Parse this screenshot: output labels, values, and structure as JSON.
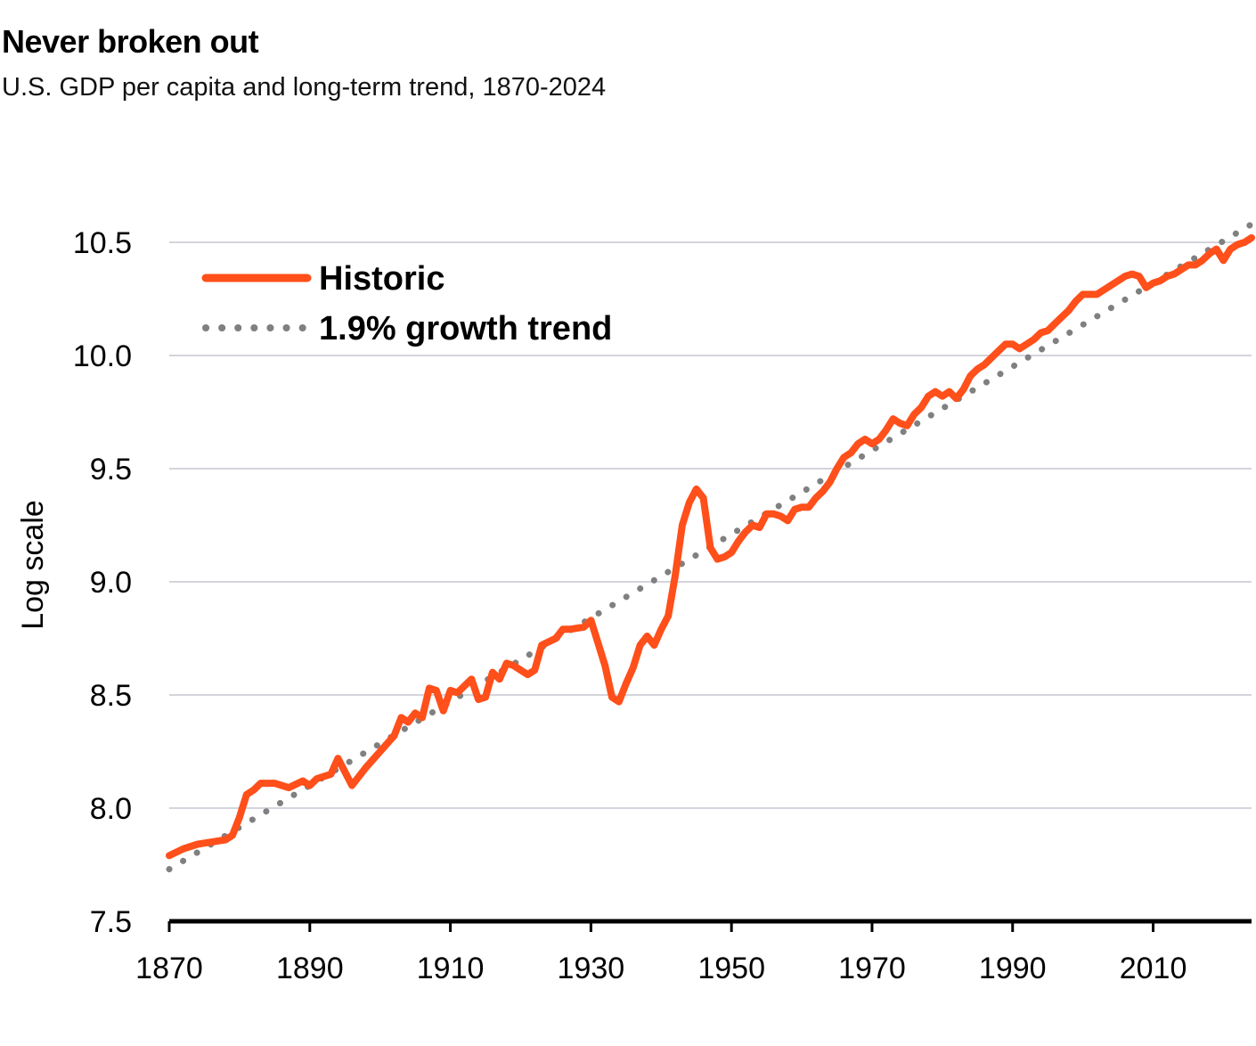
{
  "chart_data": {
    "type": "line",
    "title": "Never broken out",
    "subtitle": "U.S. GDP per capita and long-term trend, 1870-2024",
    "xlabel": "",
    "ylabel": "Log scale",
    "xlim": [
      1870,
      2024
    ],
    "ylim": [
      7.5,
      10.5
    ],
    "x_ticks": [
      "1870",
      "1890",
      "1910",
      "1930",
      "1950",
      "1970",
      "1990",
      "2010"
    ],
    "y_ticks": [
      "7.5",
      "8.0",
      "8.5",
      "9.0",
      "9.5",
      "10.0",
      "10.5"
    ],
    "grid": true,
    "legend_position": "top-left",
    "series": [
      {
        "name": "Historic",
        "color": "#ff4f1a",
        "style": "solid",
        "points": [
          [
            1870,
            7.79
          ],
          [
            1872,
            7.82
          ],
          [
            1874,
            7.84
          ],
          [
            1876,
            7.85
          ],
          [
            1878,
            7.86
          ],
          [
            1879,
            7.88
          ],
          [
            1880,
            7.96
          ],
          [
            1881,
            8.06
          ],
          [
            1882,
            8.08
          ],
          [
            1883,
            8.11
          ],
          [
            1885,
            8.11
          ],
          [
            1887,
            8.09
          ],
          [
            1889,
            8.12
          ],
          [
            1890,
            8.1
          ],
          [
            1891,
            8.13
          ],
          [
            1893,
            8.15
          ],
          [
            1894,
            8.22
          ],
          [
            1896,
            8.1
          ],
          [
            1898,
            8.18
          ],
          [
            1900,
            8.25
          ],
          [
            1902,
            8.32
          ],
          [
            1903,
            8.4
          ],
          [
            1904,
            8.38
          ],
          [
            1905,
            8.42
          ],
          [
            1906,
            8.4
          ],
          [
            1907,
            8.53
          ],
          [
            1908,
            8.52
          ],
          [
            1909,
            8.43
          ],
          [
            1910,
            8.52
          ],
          [
            1911,
            8.51
          ],
          [
            1913,
            8.57
          ],
          [
            1914,
            8.48
          ],
          [
            1915,
            8.49
          ],
          [
            1916,
            8.6
          ],
          [
            1917,
            8.57
          ],
          [
            1918,
            8.64
          ],
          [
            1919,
            8.63
          ],
          [
            1920,
            8.61
          ],
          [
            1921,
            8.59
          ],
          [
            1922,
            8.61
          ],
          [
            1923,
            8.72
          ],
          [
            1925,
            8.75
          ],
          [
            1926,
            8.79
          ],
          [
            1927,
            8.79
          ],
          [
            1929,
            8.8
          ],
          [
            1930,
            8.83
          ],
          [
            1931,
            8.73
          ],
          [
            1932,
            8.63
          ],
          [
            1933,
            8.49
          ],
          [
            1934,
            8.47
          ],
          [
            1935,
            8.55
          ],
          [
            1936,
            8.62
          ],
          [
            1937,
            8.72
          ],
          [
            1938,
            8.76
          ],
          [
            1939,
            8.72
          ],
          [
            1940,
            8.79
          ],
          [
            1941,
            8.85
          ],
          [
            1942,
            9.03
          ],
          [
            1943,
            9.25
          ],
          [
            1944,
            9.35
          ],
          [
            1945,
            9.41
          ],
          [
            1946,
            9.37
          ],
          [
            1947,
            9.15
          ],
          [
            1948,
            9.1
          ],
          [
            1949,
            9.11
          ],
          [
            1950,
            9.13
          ],
          [
            1951,
            9.18
          ],
          [
            1952,
            9.22
          ],
          [
            1953,
            9.25
          ],
          [
            1954,
            9.24
          ],
          [
            1955,
            9.3
          ],
          [
            1956,
            9.3
          ],
          [
            1957,
            9.29
          ],
          [
            1958,
            9.27
          ],
          [
            1959,
            9.32
          ],
          [
            1960,
            9.33
          ],
          [
            1961,
            9.33
          ],
          [
            1962,
            9.37
          ],
          [
            1963,
            9.4
          ],
          [
            1964,
            9.44
          ],
          [
            1965,
            9.5
          ],
          [
            1966,
            9.55
          ],
          [
            1967,
            9.57
          ],
          [
            1968,
            9.61
          ],
          [
            1969,
            9.63
          ],
          [
            1970,
            9.61
          ],
          [
            1971,
            9.63
          ],
          [
            1972,
            9.67
          ],
          [
            1973,
            9.72
          ],
          [
            1974,
            9.7
          ],
          [
            1975,
            9.69
          ],
          [
            1976,
            9.74
          ],
          [
            1977,
            9.77
          ],
          [
            1978,
            9.82
          ],
          [
            1979,
            9.84
          ],
          [
            1980,
            9.82
          ],
          [
            1981,
            9.84
          ],
          [
            1982,
            9.81
          ],
          [
            1983,
            9.85
          ],
          [
            1984,
            9.91
          ],
          [
            1985,
            9.94
          ],
          [
            1986,
            9.96
          ],
          [
            1987,
            9.99
          ],
          [
            1988,
            10.02
          ],
          [
            1989,
            10.05
          ],
          [
            1990,
            10.05
          ],
          [
            1991,
            10.03
          ],
          [
            1992,
            10.05
          ],
          [
            1993,
            10.07
          ],
          [
            1994,
            10.1
          ],
          [
            1995,
            10.11
          ],
          [
            1996,
            10.14
          ],
          [
            1997,
            10.17
          ],
          [
            1998,
            10.2
          ],
          [
            1999,
            10.24
          ],
          [
            2000,
            10.27
          ],
          [
            2001,
            10.27
          ],
          [
            2002,
            10.27
          ],
          [
            2003,
            10.29
          ],
          [
            2004,
            10.31
          ],
          [
            2005,
            10.33
          ],
          [
            2006,
            10.35
          ],
          [
            2007,
            10.36
          ],
          [
            2008,
            10.35
          ],
          [
            2009,
            10.3
          ],
          [
            2010,
            10.32
          ],
          [
            2011,
            10.33
          ],
          [
            2012,
            10.35
          ],
          [
            2013,
            10.36
          ],
          [
            2014,
            10.38
          ],
          [
            2015,
            10.4
          ],
          [
            2016,
            10.4
          ],
          [
            2017,
            10.42
          ],
          [
            2018,
            10.45
          ],
          [
            2019,
            10.47
          ],
          [
            2020,
            10.42
          ],
          [
            2021,
            10.47
          ],
          [
            2022,
            10.49
          ],
          [
            2023,
            10.5
          ],
          [
            2024,
            10.52
          ]
        ]
      },
      {
        "name": "1.9% growth trend",
        "color": "#808080",
        "style": "dotted",
        "points": [
          [
            1870,
            7.73
          ],
          [
            2024,
            10.58
          ]
        ]
      }
    ]
  }
}
